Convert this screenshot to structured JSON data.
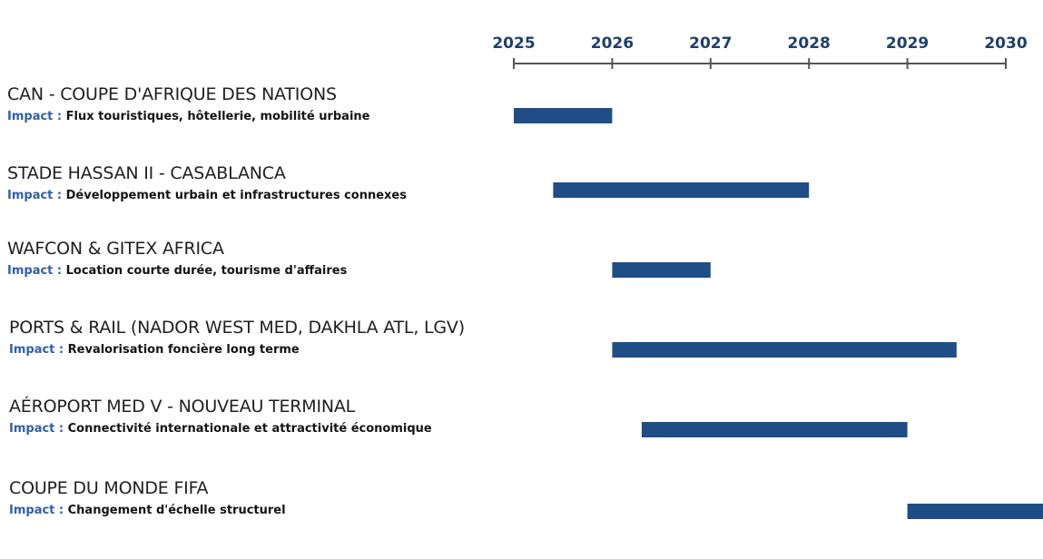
{
  "colors": {
    "bar": "#1f4e87",
    "axis": "#555555",
    "year_label": "#1f3f6e",
    "impact_label": "#2f5fa7",
    "title_text": "#1f1f1f"
  },
  "impact_prefix": "Impact :",
  "rows": [
    {
      "title": "CAN - COUPE D'AFRIQUE DES NATIONS",
      "impact": "Flux touristiques, hôtellerie, mobilité urbaine"
    },
    {
      "title": "STADE HASSAN II - CASABLANCA",
      "impact": "Développement urbain et infrastructures connexes"
    },
    {
      "title": "WAFCON & GITEX AFRICA",
      "impact": "Location courte durée, tourisme d'affaires"
    },
    {
      "title": "PORTS & RAIL (NADOR WEST MED, DAKHLA ATL, LGV)",
      "impact": "Revalorisation foncière long terme"
    },
    {
      "title": "AÉROPORT MED V - NOUVEAU TERMINAL",
      "impact": "Connectivité internationale et attractivité économique"
    },
    {
      "title": "COUPE DU MONDE FIFA",
      "impact": "Changement d'échelle structurel"
    }
  ],
  "chart_data": {
    "type": "bar",
    "orientation": "horizontal",
    "title": "",
    "xlabel": "",
    "ylabel": "",
    "x_ticks": [
      2025,
      2026,
      2027,
      2028,
      2029,
      2030
    ],
    "xlim": [
      2025,
      2030
    ],
    "grid": false,
    "legend": "none",
    "categories": [
      "CAN - COUPE D'AFRIQUE DES NATIONS",
      "STADE HASSAN II - CASABLANCA",
      "WAFCON & GITEX AFRICA",
      "PORTS & RAIL (NADOR WEST MED, DAKHLA ATL, LGV)",
      "AÉROPORT MED V - NOUVEAU TERMINAL",
      "COUPE DU MONDE FIFA"
    ],
    "ranges": [
      {
        "start": 2025.0,
        "end": 2026.0
      },
      {
        "start": 2025.4,
        "end": 2028.0
      },
      {
        "start": 2026.0,
        "end": 2027.0
      },
      {
        "start": 2026.0,
        "end": 2029.5
      },
      {
        "start": 2026.3,
        "end": 2029.0
      },
      {
        "start": 2029.0,
        "end": 2030.4
      }
    ]
  }
}
